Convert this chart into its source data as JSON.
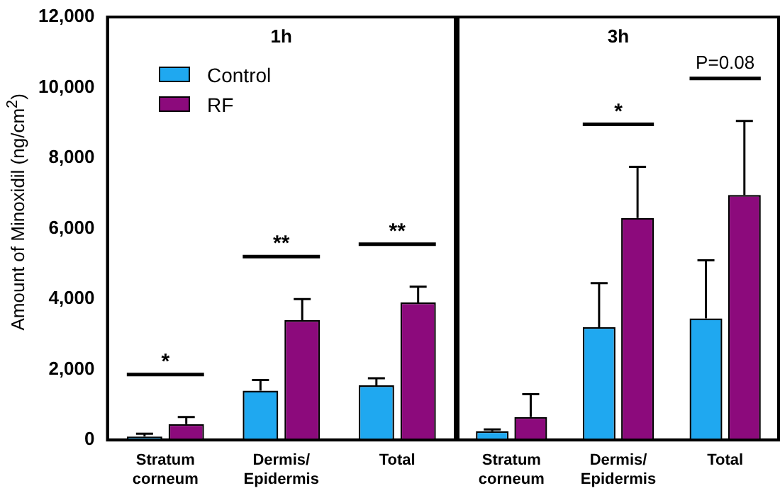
{
  "chart_data": [
    {
      "type": "bar",
      "title": "1h",
      "ylabel": "Amount of Minoxidil (ng/cm$^{2}$)",
      "categories": [
        "Stratum corneum",
        "Dermis/ Epidermis",
        "Total"
      ],
      "series": [
        {
          "name": "Control",
          "color": "#1fa8f0",
          "values": [
            100,
            1400,
            1550
          ],
          "errors": [
            80,
            300,
            200
          ]
        },
        {
          "name": "RF",
          "color": "#8c0a7c",
          "values": [
            450,
            3400,
            3900
          ],
          "errors": [
            200,
            600,
            450
          ]
        }
      ],
      "ylim": [
        0,
        12000
      ],
      "yticks": [
        {
          "value": 0,
          "label": "0"
        },
        {
          "value": 2000,
          "label": "2,000"
        },
        {
          "value": 4000,
          "label": "4,000"
        },
        {
          "value": 6000,
          "label": "6,000"
        },
        {
          "value": 8000,
          "label": "8,000"
        },
        {
          "value": 10000,
          "label": "10,000"
        },
        {
          "value": 12000,
          "label": "12,000"
        }
      ],
      "annotations": [
        "*",
        "**",
        "**"
      ],
      "legend": "top left",
      "grid": false
    },
    {
      "type": "bar",
      "title": "3h",
      "categories": [
        "Stratum corneum",
        "Dermis/ Epidermis",
        "Total"
      ],
      "series": [
        {
          "color": "#1fa8f0",
          "values": [
            250,
            3200,
            3450
          ],
          "errors": [
            50,
            1250,
            1650
          ]
        },
        {
          "color": "#8c0a7c",
          "values": [
            650,
            6300,
            6950
          ],
          "errors": [
            650,
            1450,
            2100
          ]
        }
      ],
      "ylim": [
        0,
        12000
      ],
      "annotations": [
        "*",
        "P=0.08"
      ],
      "tick_labels": "x",
      "grid": false
    }
  ]
}
